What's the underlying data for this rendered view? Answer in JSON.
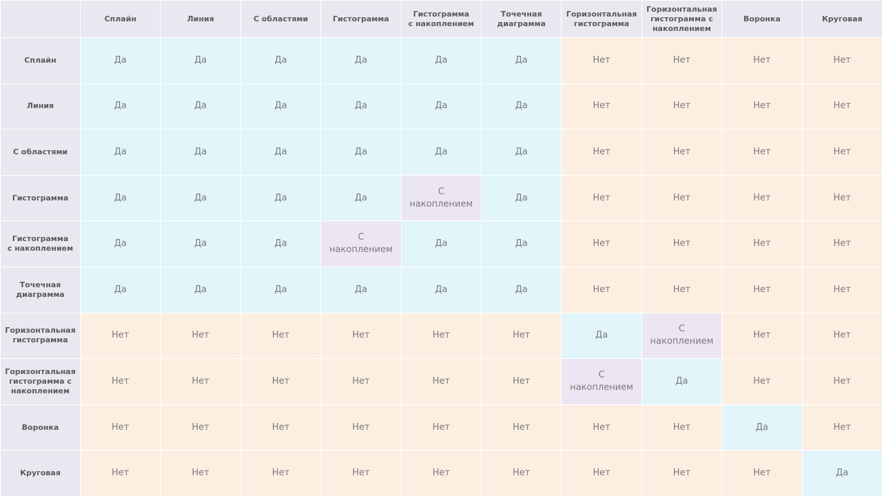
{
  "columns": [
    "Сплайн",
    "Линия",
    "С областями",
    "Гистограмма",
    "Гистограмма\nс накоплением",
    "Точечная\nдиаграмма",
    "Горизонтальная\nгистограмма",
    "Горизонтальная\nгистограмма  с\nнакоплением",
    "Воронка",
    "Круговая"
  ],
  "rows": [
    {
      "label": "Сплайн",
      "cells": [
        "Да",
        "Да",
        "Да",
        "Да",
        "Да",
        "Да",
        "Нет",
        "Нет",
        "Нет",
        "Нет"
      ]
    },
    {
      "label": "Линия",
      "cells": [
        "Да",
        "Да",
        "Да",
        "Да",
        "Да",
        "Да",
        "Нет",
        "Нет",
        "Нет",
        "Нет"
      ]
    },
    {
      "label": "С областями",
      "cells": [
        "Да",
        "Да",
        "Да",
        "Да",
        "Да",
        "Да",
        "Нет",
        "Нет",
        "Нет",
        "Нет"
      ]
    },
    {
      "label": "Гистограмма",
      "cells": [
        "Да",
        "Да",
        "Да",
        "Да",
        "С\nнакоплением",
        "Да",
        "Нет",
        "Нет",
        "Нет",
        "Нет"
      ]
    },
    {
      "label": "Гистограмма\nс накоплением",
      "cells": [
        "Да",
        "Да",
        "Да",
        "С\nнакоплением",
        "Да",
        "Да",
        "Нет",
        "Нет",
        "Нет",
        "Нет"
      ]
    },
    {
      "label": "Точечная\nдиаграмма",
      "cells": [
        "Да",
        "Да",
        "Да",
        "Да",
        "Да",
        "Да",
        "Нет",
        "Нет",
        "Нет",
        "Нет"
      ]
    },
    {
      "label": "Горизонтальная\nгистограмма",
      "cells": [
        "Нет",
        "Нет",
        "Нет",
        "Нет",
        "Нет",
        "Нет",
        "Да",
        "С\nнакоплением",
        "Нет",
        "Нет"
      ]
    },
    {
      "label": "Горизонтальная\nгистограмма  с\nнакоплением",
      "cells": [
        "Нет",
        "Нет",
        "Нет",
        "Нет",
        "Нет",
        "Нет",
        "С\nнакоплением",
        "Да",
        "Нет",
        "Нет"
      ]
    },
    {
      "label": "Воронка",
      "cells": [
        "Нет",
        "Нет",
        "Нет",
        "Нет",
        "Нет",
        "Нет",
        "Нет",
        "Нет",
        "Да",
        "Нет"
      ]
    },
    {
      "label": "Круговая",
      "cells": [
        "Нет",
        "Нет",
        "Нет",
        "Нет",
        "Нет",
        "Нет",
        "Нет",
        "Нет",
        "Нет",
        "Да"
      ]
    }
  ],
  "colors": {
    "yes": "#e1f5fb",
    "no": "#fdeee2",
    "stacked": "#ece6f3",
    "header": "#e8e8f0"
  }
}
